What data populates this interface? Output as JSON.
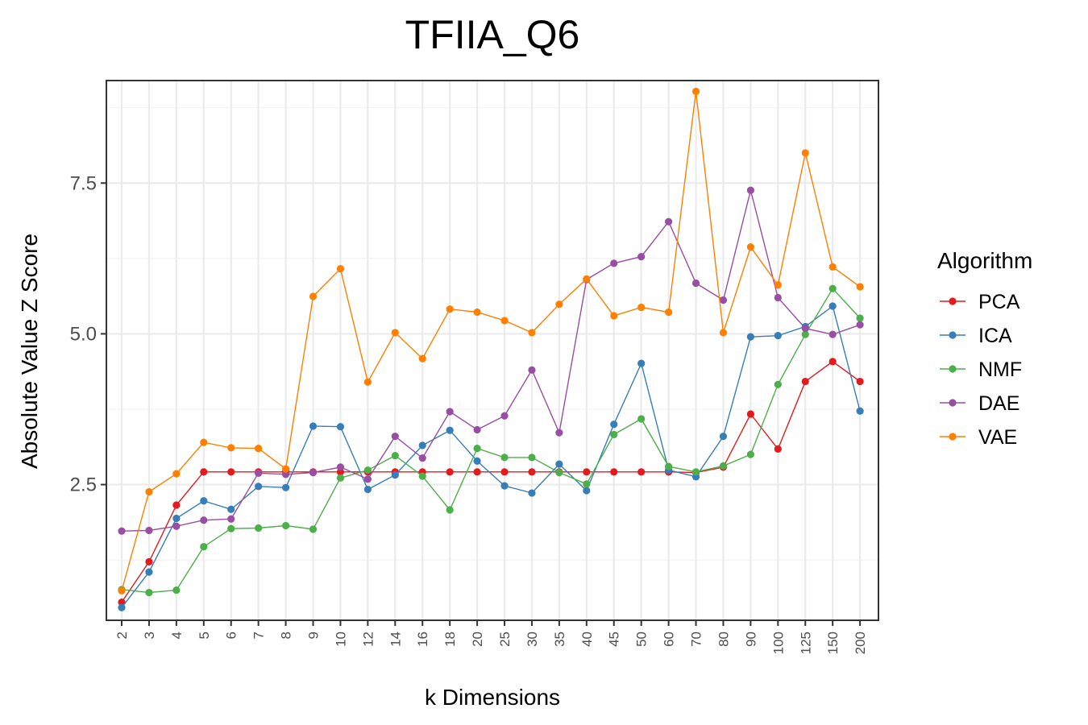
{
  "chart_data": {
    "type": "line",
    "title": "TFIIA_Q6",
    "xlabel": "k Dimensions",
    "ylabel": "Absolute Value Z Score",
    "categories": [
      "2",
      "3",
      "4",
      "5",
      "6",
      "7",
      "8",
      "9",
      "10",
      "12",
      "14",
      "16",
      "18",
      "20",
      "25",
      "30",
      "35",
      "40",
      "45",
      "50",
      "60",
      "70",
      "80",
      "90",
      "100",
      "125",
      "150",
      "200"
    ],
    "yticks": [
      2.5,
      5.0,
      7.5
    ],
    "ytick_labels": [
      "2.5",
      "5.0",
      "7.5"
    ],
    "ylim": [
      0.25,
      9.2
    ],
    "grid": true,
    "legend": {
      "title": "Algorithm",
      "position": "right"
    },
    "series": [
      {
        "name": "PCA",
        "color": "#e41a1c",
        "values": [
          0.55,
          1.22,
          2.16,
          2.71,
          2.71,
          2.71,
          2.71,
          2.71,
          2.71,
          2.71,
          2.71,
          2.71,
          2.71,
          2.71,
          2.71,
          2.71,
          2.71,
          2.71,
          2.71,
          2.71,
          2.71,
          2.7,
          2.79,
          3.67,
          3.09,
          4.21,
          4.54,
          4.21
        ]
      },
      {
        "name": "ICA",
        "color": "#377eb8",
        "values": [
          0.46,
          1.05,
          1.94,
          2.23,
          2.09,
          2.47,
          2.45,
          3.47,
          3.46,
          2.42,
          2.66,
          3.15,
          3.4,
          2.89,
          2.48,
          2.36,
          2.84,
          2.4,
          3.5,
          4.51,
          2.74,
          2.63,
          3.3,
          4.95,
          4.97,
          5.12,
          5.46,
          3.72
        ]
      },
      {
        "name": "NMF",
        "color": "#4daf4a",
        "values": [
          0.76,
          0.71,
          0.75,
          1.47,
          1.77,
          1.78,
          1.82,
          1.76,
          2.61,
          2.74,
          2.98,
          2.64,
          2.08,
          3.1,
          2.95,
          2.95,
          2.7,
          2.51,
          3.33,
          3.59,
          2.8,
          2.71,
          2.81,
          3.0,
          4.16,
          4.99,
          5.75,
          5.26
        ]
      },
      {
        "name": "DAE",
        "color": "#984ea3",
        "values": [
          1.73,
          1.74,
          1.81,
          1.91,
          1.93,
          2.69,
          2.67,
          2.7,
          2.79,
          2.59,
          3.3,
          2.94,
          3.71,
          3.41,
          3.64,
          4.4,
          3.36,
          5.9,
          6.17,
          6.28,
          6.86,
          5.84,
          5.56,
          7.38,
          5.6,
          5.09,
          4.99,
          5.15
        ]
      },
      {
        "name": "VAE",
        "color": "#ff7f00",
        "values": [
          0.74,
          2.38,
          2.68,
          3.2,
          3.11,
          3.1,
          2.76,
          5.62,
          6.08,
          4.2,
          5.02,
          4.59,
          5.41,
          5.36,
          5.22,
          5.02,
          5.49,
          5.91,
          5.3,
          5.44,
          5.36,
          9.02,
          5.02,
          6.44,
          5.81,
          8.0,
          6.11,
          5.78
        ]
      }
    ]
  }
}
